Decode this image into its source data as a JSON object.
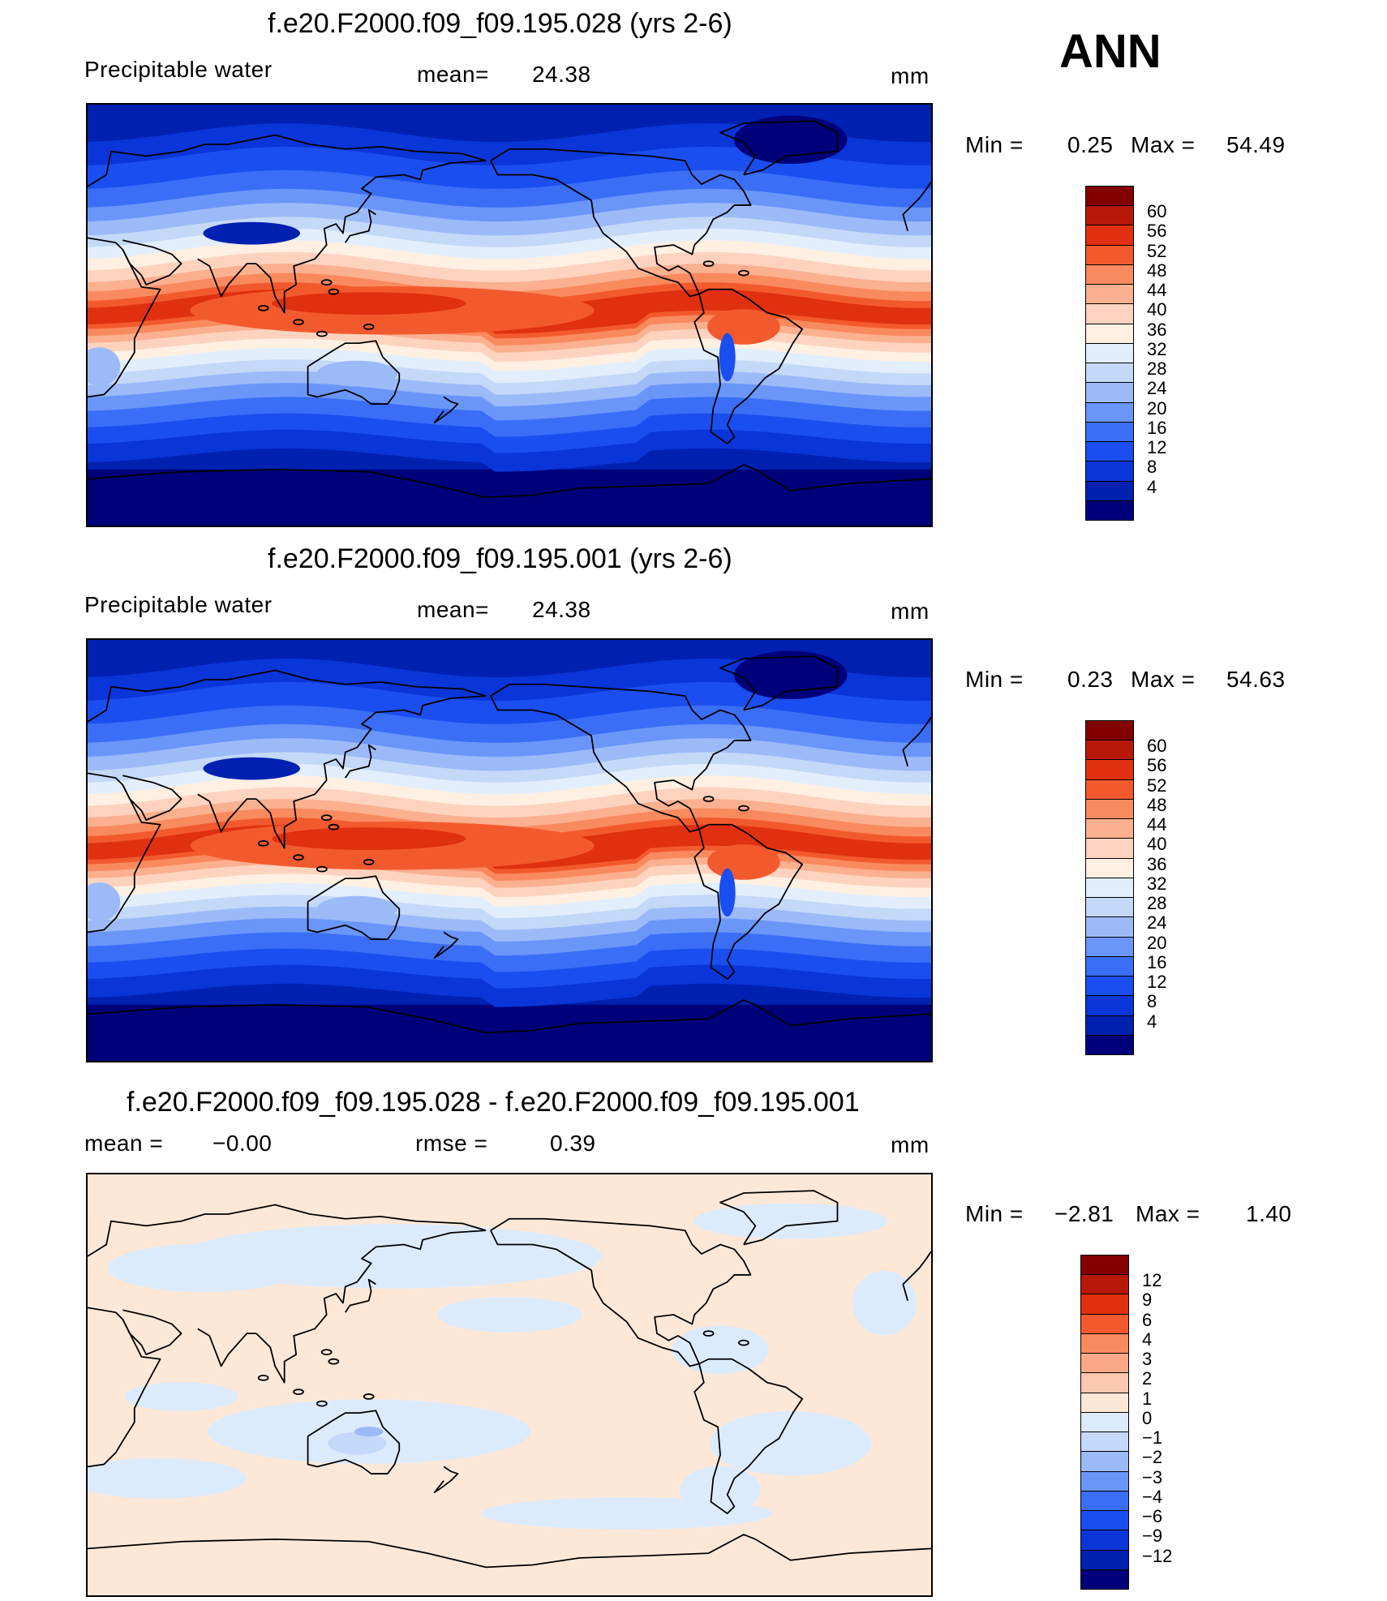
{
  "header": {
    "season": "ANN"
  },
  "colors": {
    "abs_scale": [
      "#00007a",
      "#0020b0",
      "#0a35d8",
      "#1a4ef0",
      "#3a6ef6",
      "#6a96fa",
      "#9cbaf8",
      "#c4d8f8",
      "#e2eefc",
      "#fff0e2",
      "#fdd3bf",
      "#fbb090",
      "#f98a5e",
      "#f25a2e",
      "#e03010",
      "#b81808",
      "#820000"
    ],
    "diff_scale": [
      "#00007a",
      "#0020b0",
      "#0a35d8",
      "#1a4ef0",
      "#3a6ef6",
      "#6a96fa",
      "#9cbaf8",
      "#c4d8f8",
      "#dcebfc",
      "#fde8d8",
      "#fdc8b0",
      "#fba888",
      "#f98a5e",
      "#f25a2e",
      "#e03010",
      "#b81808",
      "#820000"
    ]
  },
  "panels": [
    {
      "title": "f.e20.F2000.f09_f09.195.028 (yrs 2-6)",
      "left_label": "Precipitable  water",
      "stat_label": "mean=",
      "stat_value": "24.38",
      "units": "mm",
      "min_label": "Min  =",
      "min_value": "0.25",
      "max_label": "Max  =",
      "max_value": "54.49",
      "colorbar_ticks": [
        "60",
        "56",
        "52",
        "48",
        "44",
        "40",
        "36",
        "32",
        "28",
        "24",
        "20",
        "16",
        "12",
        "8",
        "4"
      ]
    },
    {
      "title": "f.e20.F2000.f09_f09.195.001 (yrs 2-6)",
      "left_label": "Precipitable  water",
      "stat_label": "mean=",
      "stat_value": "24.38",
      "units": "mm",
      "min_label": "Min  =",
      "min_value": "0.23",
      "max_label": "Max  =",
      "max_value": "54.63",
      "colorbar_ticks": [
        "60",
        "56",
        "52",
        "48",
        "44",
        "40",
        "36",
        "32",
        "28",
        "24",
        "20",
        "16",
        "12",
        "8",
        "4"
      ]
    },
    {
      "title": "f.e20.F2000.f09_f09.195.028 - f.e20.F2000.f09_f09.195.001",
      "left_label": "mean  =",
      "left_value": "−0.00",
      "stat_label": "rmse  =",
      "stat_value": "0.39",
      "units": "mm",
      "min_label": "Min  =",
      "min_value": "−2.81",
      "max_label": "Max  =",
      "max_value": "1.40",
      "colorbar_ticks": [
        "12",
        "9",
        "6",
        "4",
        "3",
        "2",
        "1",
        "0",
        "−1",
        "−2",
        "−3",
        "−4",
        "−6",
        "−9",
        "−12"
      ]
    }
  ]
}
